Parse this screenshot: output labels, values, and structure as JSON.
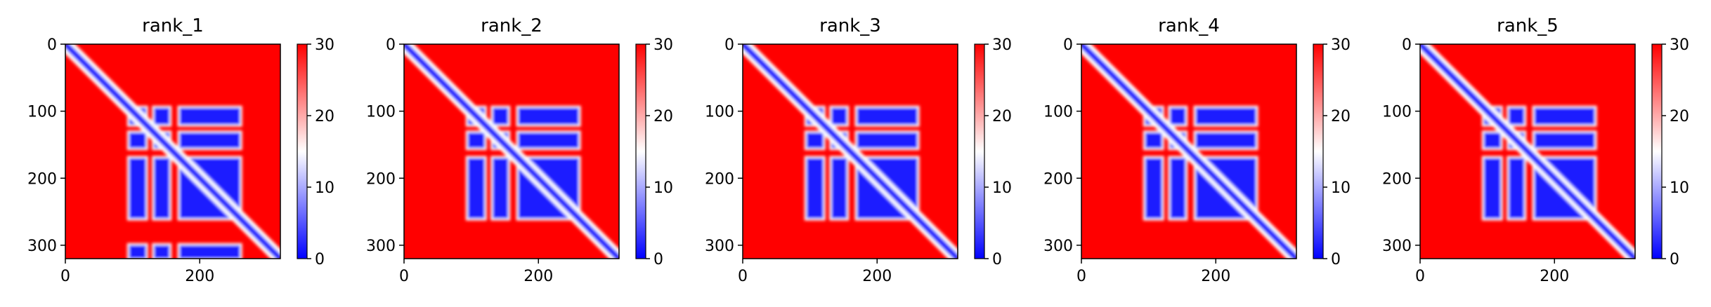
{
  "chart_data": [
    {
      "type": "heatmap",
      "title": "rank_1",
      "xlim": [
        0,
        320
      ],
      "ylim": [
        320,
        0
      ],
      "x_ticks": [
        "0",
        "200"
      ],
      "y_ticks": [
        "0",
        "100",
        "200",
        "300"
      ],
      "colorbar": {
        "range": [
          0,
          30
        ],
        "ticks": [
          "0",
          "10",
          "20",
          "30"
        ],
        "colormap": "bwr"
      },
      "blue_blocks": [
        [
          95,
          120
        ],
        [
          132,
          155
        ],
        [
          170,
          260
        ],
        [
          300,
          320
        ]
      ],
      "grid": false
    },
    {
      "type": "heatmap",
      "title": "rank_2",
      "xlim": [
        0,
        320
      ],
      "ylim": [
        320,
        0
      ],
      "x_ticks": [
        "0",
        "200"
      ],
      "y_ticks": [
        "0",
        "100",
        "200",
        "300"
      ],
      "colorbar": {
        "range": [
          0,
          30
        ],
        "ticks": [
          "0",
          "10",
          "20",
          "30"
        ],
        "colormap": "bwr"
      },
      "blue_blocks": [
        [
          95,
          120
        ],
        [
          132,
          155
        ],
        [
          170,
          260
        ]
      ],
      "grid": false
    },
    {
      "type": "heatmap",
      "title": "rank_3",
      "xlim": [
        0,
        320
      ],
      "ylim": [
        320,
        0
      ],
      "x_ticks": [
        "0",
        "200"
      ],
      "y_ticks": [
        "0",
        "100",
        "200",
        "300"
      ],
      "colorbar": {
        "range": [
          0,
          30
        ],
        "ticks": [
          "0",
          "10",
          "20",
          "30"
        ],
        "colormap": "bwr"
      },
      "blue_blocks": [
        [
          95,
          120
        ],
        [
          132,
          155
        ],
        [
          170,
          260
        ]
      ],
      "grid": false
    },
    {
      "type": "heatmap",
      "title": "rank_4",
      "xlim": [
        0,
        320
      ],
      "ylim": [
        320,
        0
      ],
      "x_ticks": [
        "0",
        "200"
      ],
      "y_ticks": [
        "0",
        "100",
        "200",
        "300"
      ],
      "colorbar": {
        "range": [
          0,
          30
        ],
        "ticks": [
          "0",
          "10",
          "20",
          "30"
        ],
        "colormap": "bwr"
      },
      "blue_blocks": [
        [
          95,
          120
        ],
        [
          132,
          155
        ],
        [
          170,
          260
        ]
      ],
      "grid": false
    },
    {
      "type": "heatmap",
      "title": "rank_5",
      "xlim": [
        0,
        320
      ],
      "ylim": [
        320,
        0
      ],
      "x_ticks": [
        "0",
        "200"
      ],
      "y_ticks": [
        "0",
        "100",
        "200",
        "300"
      ],
      "colorbar": {
        "range": [
          0,
          30
        ],
        "ticks": [
          "0",
          "10",
          "20",
          "30"
        ],
        "colormap": "bwr"
      },
      "blue_blocks": [
        [
          95,
          120
        ],
        [
          132,
          155
        ],
        [
          170,
          260
        ]
      ],
      "grid": false
    }
  ],
  "colors": {
    "low": "#0000ff",
    "mid": "#ffffff",
    "high": "#ff0000"
  }
}
